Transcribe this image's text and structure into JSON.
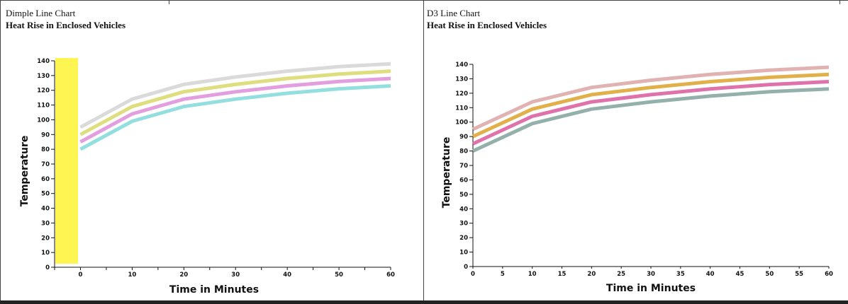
{
  "panels": {
    "left": {
      "title": "Dimple Line Chart",
      "subtitle": "Heat Rise in Enclosed Vehicles"
    },
    "right": {
      "title": "D3 Line Chart",
      "subtitle": "Heat Rise in Enclosed Vehicles"
    }
  },
  "highlight_color": "#fff552",
  "chart_data": [
    {
      "type": "line",
      "title": "Heat Rise in Enclosed Vehicles",
      "xlabel": "Time in Minutes",
      "ylabel": "Temperature",
      "x": [
        0,
        10,
        20,
        30,
        40,
        50,
        60
      ],
      "x_ticks": [
        0,
        10,
        20,
        30,
        40,
        50,
        60
      ],
      "xlim": [
        -5,
        60
      ],
      "ylim": [
        0,
        140
      ],
      "y_ticks": [
        0,
        10,
        20,
        30,
        40,
        50,
        60,
        70,
        80,
        90,
        100,
        110,
        120,
        130,
        140
      ],
      "grid": false,
      "series": [
        {
          "values": [
            95,
            114,
            124,
            129,
            133,
            136,
            138
          ],
          "color": "#dadada"
        },
        {
          "values": [
            90,
            109,
            119,
            124,
            128,
            131,
            133
          ],
          "color": "#dede7e"
        },
        {
          "values": [
            85,
            104,
            114,
            119,
            123,
            126,
            128
          ],
          "color": "#e39ee0"
        },
        {
          "values": [
            80,
            99,
            109,
            114,
            118,
            121,
            123
          ],
          "color": "#93dede"
        }
      ]
    },
    {
      "type": "line",
      "title": "Heat Rise in Enclosed Vehicles",
      "xlabel": "Time in Minutes",
      "ylabel": "Temperature",
      "x": [
        0,
        10,
        20,
        30,
        40,
        50,
        60
      ],
      "x_ticks": [
        0,
        5,
        10,
        15,
        20,
        25,
        30,
        35,
        40,
        45,
        50,
        55,
        60
      ],
      "xlim": [
        0,
        60
      ],
      "ylim": [
        0,
        140
      ],
      "y_ticks": [
        0,
        10,
        20,
        30,
        40,
        50,
        60,
        70,
        80,
        90,
        100,
        110,
        120,
        130,
        140
      ],
      "grid": false,
      "series": [
        {
          "values": [
            95,
            114,
            124,
            129,
            133,
            136,
            138
          ],
          "color": "#e0b2b2"
        },
        {
          "values": [
            90,
            109,
            119,
            124,
            128,
            131,
            133
          ],
          "color": "#e2b04a"
        },
        {
          "values": [
            85,
            104,
            114,
            119,
            123,
            126,
            128
          ],
          "color": "#df72ab"
        },
        {
          "values": [
            80,
            99,
            109,
            114,
            118,
            121,
            123
          ],
          "color": "#94b0aa"
        }
      ]
    }
  ]
}
